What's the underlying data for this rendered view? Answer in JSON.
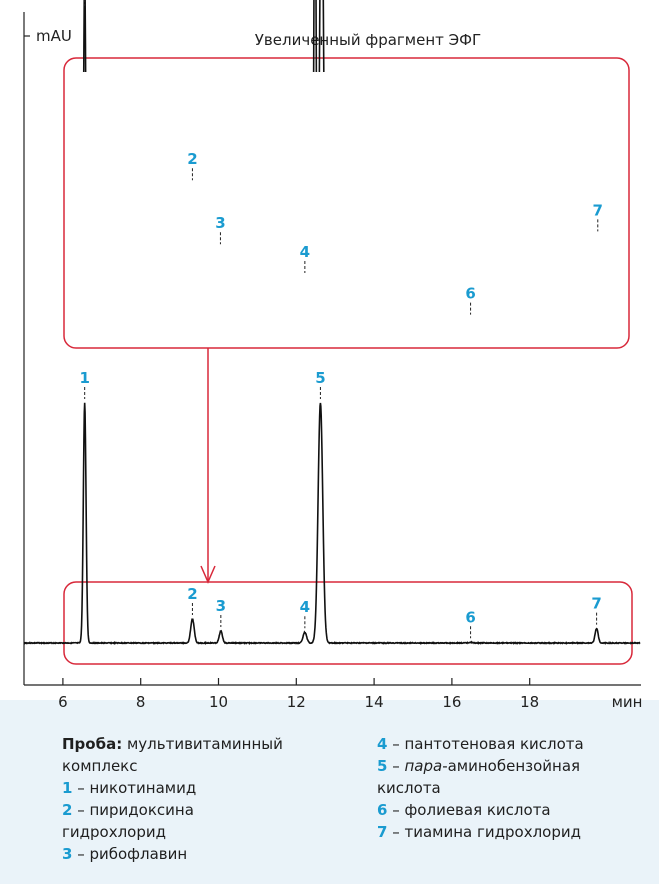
{
  "chart_data": {
    "type": "line",
    "ylabel": "mAU",
    "xlabel": "мин",
    "xlim": [
      5,
      20.9
    ],
    "xticks": [
      6,
      8,
      10,
      12,
      14,
      16,
      18
    ],
    "zoom_title": "Увеличенный фрагмент ЭФГ",
    "accent_color": "#d8283a",
    "label_color": "#1a9bd0",
    "series": [
      {
        "panel": "overview",
        "peaks": [
          {
            "label": "1",
            "x": 6.56,
            "height": 1.0,
            "width": 0.035
          },
          {
            "label": "2",
            "x": 9.33,
            "height": 0.1,
            "width": 0.045
          },
          {
            "label": "3",
            "x": 10.06,
            "height": 0.05,
            "width": 0.04
          },
          {
            "label": "4",
            "x": 12.22,
            "height": 0.045,
            "width": 0.045
          },
          {
            "label": "5",
            "x": 12.62,
            "height": 1.0,
            "width": 0.06
          },
          {
            "label": "6",
            "x": 16.48,
            "height": 0.003,
            "width": 0.05
          },
          {
            "label": "7",
            "x": 19.72,
            "height": 0.06,
            "width": 0.04
          }
        ]
      },
      {
        "panel": "zoom",
        "peaks": [
          {
            "label": "1",
            "x": 6.56,
            "height": 2.2,
            "width": 0.03
          },
          {
            "label": "2",
            "x": 9.33,
            "height": 0.88,
            "width": 0.05
          },
          {
            "label": "3",
            "x": 10.05,
            "height": 0.48,
            "width": 0.04
          },
          {
            "label": "4",
            "x": 12.22,
            "height": 0.3,
            "width": 0.05
          },
          {
            "label": "",
            "x": 12.48,
            "height": 3.0,
            "width": 0.03
          },
          {
            "label": "",
            "x": 12.65,
            "height": 3.0,
            "width": 0.05
          },
          {
            "label": "6",
            "x": 16.48,
            "height": 0.04,
            "width": 0.05
          },
          {
            "label": "7",
            "x": 19.75,
            "height": 0.56,
            "width": 0.04
          }
        ]
      }
    ]
  },
  "legend": {
    "sample_label": "Проба:",
    "sample_value": "мультивитаминный",
    "sample_value_cont": "комплекс",
    "items": [
      {
        "num": "1",
        "text": "никотинамид"
      },
      {
        "num": "2",
        "text": "пиридоксина",
        "cont": "гидрохлорид"
      },
      {
        "num": "3",
        "text": "рибофлавин"
      },
      {
        "num": "4",
        "text": "пантотеновая кислота"
      },
      {
        "num": "5",
        "text_italic": "пара",
        "text": "-аминобензойная",
        "cont": "кислота"
      },
      {
        "num": "6",
        "text": "фолиевая кислота"
      },
      {
        "num": "7",
        "text": "тиамина гидрохлорид"
      }
    ],
    "dash": " – "
  }
}
